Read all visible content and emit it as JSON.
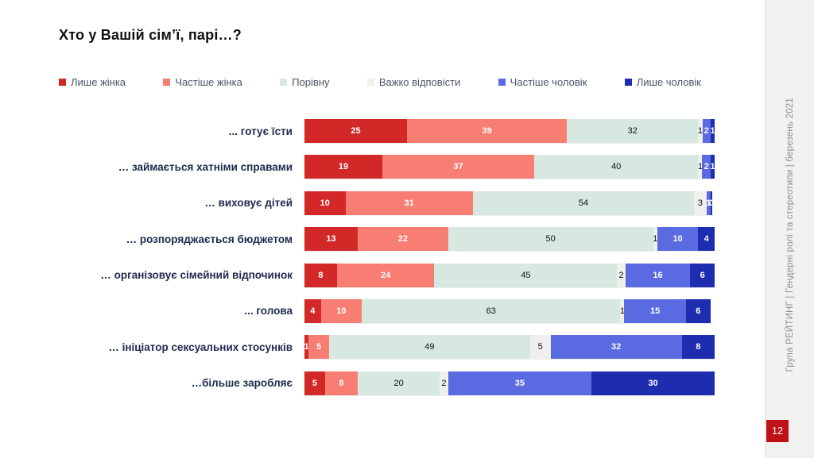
{
  "slide": {
    "title": "Хто у Вашій сім’ї, парі…?",
    "sidebar": {
      "vertical_text": "Група РЕЙТИНГ | Гендерні ролі та стереотипи | березень 2021",
      "page_number": "12",
      "badge_color": "#bf1218",
      "background_color": "#f1f1ef"
    }
  },
  "chart_data": {
    "type": "bar",
    "orientation": "horizontal",
    "stacked": true,
    "unit": "percent",
    "title": "Хто у Вашій сім’ї, парі…?",
    "xlabel": "",
    "ylabel": "",
    "xlim": [
      0,
      100
    ],
    "grid": false,
    "legend_position": "top",
    "categories": [
      "... готує їсти",
      "… займається хатніми справами",
      "… виховує дітей",
      "… розпоряджається бюджетом",
      "… організовує сімейний відпочинок",
      "... голова",
      "… ініціатор сексуальних стосунків",
      "…більше заробляє"
    ],
    "series": [
      {
        "name": "Лише жінка",
        "color": "#d22828",
        "label_color": "#ffffff",
        "values": [
          25,
          19,
          10,
          13,
          8,
          4,
          1,
          5
        ]
      },
      {
        "name": "Частіше  жінка",
        "color": "#f87d72",
        "label_color": "#ffffff",
        "values": [
          39,
          37,
          31,
          22,
          24,
          10,
          5,
          8
        ]
      },
      {
        "name": "Порівну",
        "color": "#d6e8e0",
        "label_color": "#101010",
        "values": [
          32,
          40,
          54,
          50,
          45,
          63,
          49,
          20
        ]
      },
      {
        "name": "Важко відповісти",
        "color": "#efefeb",
        "label_color": "#101010",
        "values": [
          1,
          1,
          3,
          1,
          2,
          1,
          5,
          2
        ]
      },
      {
        "name": "Частіше  чоловік",
        "color": "#5a6ae0",
        "label_color": "#ffffff",
        "values": [
          2,
          2,
          1,
          10,
          16,
          15,
          32,
          35
        ]
      },
      {
        "name": "Лише чоловік",
        "color": "#1e2caf",
        "label_color": "#ffffff",
        "values": [
          1,
          1,
          0,
          4,
          6,
          6,
          8,
          30
        ]
      }
    ]
  }
}
